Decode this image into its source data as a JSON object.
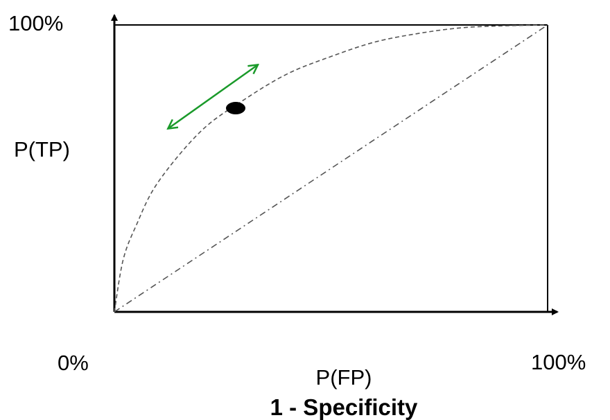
{
  "chart_data": {
    "type": "line",
    "title": "",
    "y_top_label": "100%",
    "ylabel": "P(TP)",
    "origin_label": "0%",
    "xlabel": "P(FP)",
    "x_right_label": "100%",
    "xlabel_secondary": "1 - Specificity",
    "xlim": [
      0,
      100
    ],
    "ylim": [
      0,
      100
    ],
    "grid": false,
    "series": [
      {
        "style": "dashed",
        "x": [
          0,
          2,
          5,
          10,
          20,
          30,
          40,
          50,
          60,
          70,
          80,
          90,
          100
        ],
        "y": [
          0,
          18,
          30,
          45,
          63,
          74,
          83,
          89,
          94,
          97,
          99,
          99.7,
          100
        ]
      },
      {
        "style": "dash-dot",
        "x": [
          0,
          100
        ],
        "y": [
          0,
          100
        ]
      }
    ],
    "marker": {
      "x": 28,
      "y": 71,
      "color": "#000000"
    },
    "arrow": {
      "from": [
        12.5,
        64
      ],
      "to": [
        33,
        86
      ],
      "color": "#1a9a2a"
    },
    "colors": {
      "curve": "#555555",
      "axes": "#000000",
      "secondary_label": "#2a4fd6"
    }
  }
}
